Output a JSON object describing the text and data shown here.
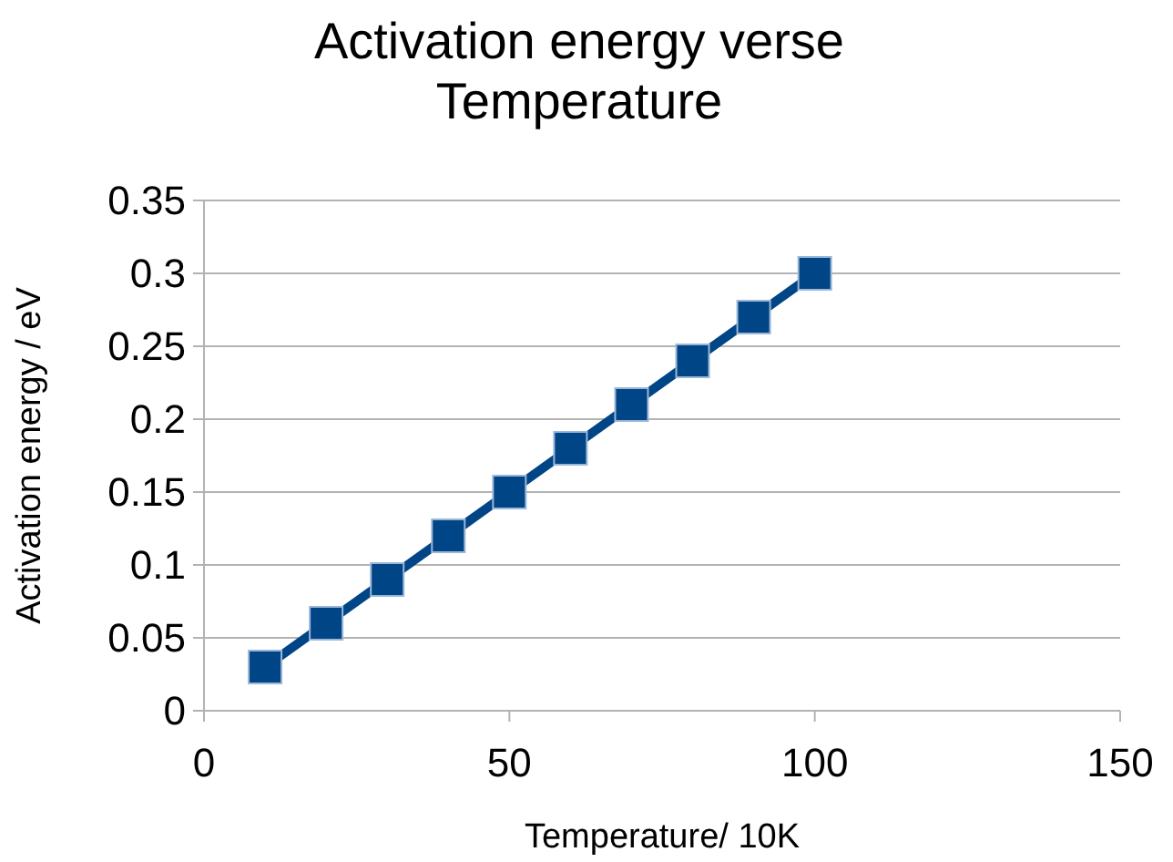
{
  "chart_data": {
    "type": "line",
    "title": "Activation energy verse Temperature",
    "xlabel": "Temperature/ 10K",
    "ylabel": "Activation energy / eV",
    "x": [
      10,
      20,
      30,
      40,
      50,
      60,
      70,
      80,
      90,
      100
    ],
    "series": [
      {
        "color": "#004586",
        "values": [
          0.03,
          0.06,
          0.09,
          0.12,
          0.15,
          0.18,
          0.21,
          0.24,
          0.27,
          0.3
        ]
      }
    ],
    "xlim": [
      0,
      150
    ],
    "xticks": [
      0,
      50,
      100,
      150
    ],
    "ylim": [
      0,
      0.35
    ],
    "yticks": [
      0,
      0.05,
      0.1,
      0.15,
      0.2,
      0.25,
      0.3,
      0.35
    ],
    "grid": "y",
    "marker": "square",
    "line_style": "solid"
  }
}
